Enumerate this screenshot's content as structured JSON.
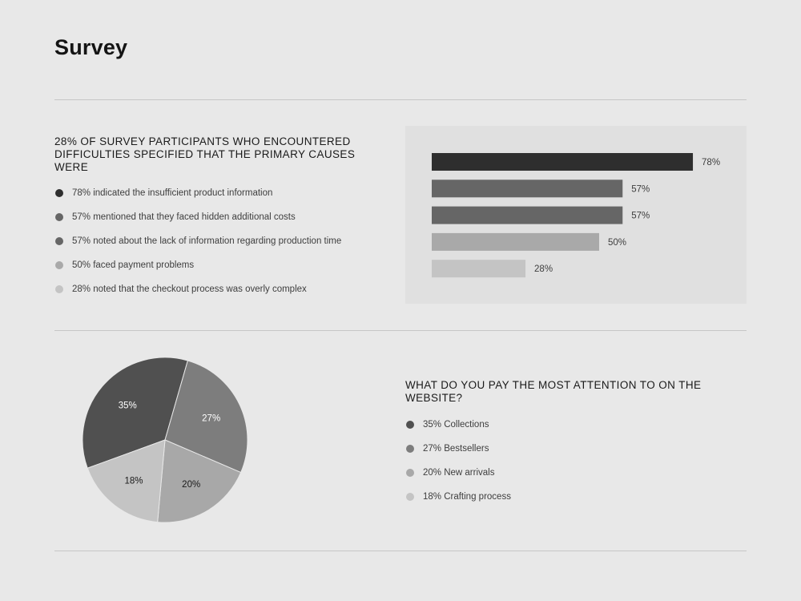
{
  "page": {
    "title": "Survey"
  },
  "section1": {
    "heading": "28% OF SURVEY PARTICIPANTS WHO ENCOUNTERED DIFFICULTIES SPECIFIED THAT THE PRIMARY CAUSES WERE",
    "items": [
      {
        "text": "78% indicated the insufficient product information",
        "color": "#2e2e2e"
      },
      {
        "text": "57% mentioned that they faced hidden additional costs",
        "color": "#666666"
      },
      {
        "text": "57% noted about the lack of information regarding production time",
        "color": "#666666"
      },
      {
        "text": "50% faced payment problems",
        "color": "#a9a9a9"
      },
      {
        "text": "28%  noted that the checkout process was overly complex",
        "color": "#c4c4c4"
      }
    ]
  },
  "section2": {
    "heading": "WHAT DO YOU PAY THE MOST ATTENTION TO ON THE WEBSITE?",
    "items": [
      {
        "text": "35% Collections",
        "color": "#505050"
      },
      {
        "text": "27% Bestsellers",
        "color": "#7d7d7d"
      },
      {
        "text": "20% New arrivals",
        "color": "#a8a8a8"
      },
      {
        "text": "18% Crafting process",
        "color": "#c4c4c4"
      }
    ]
  },
  "chart_data": [
    {
      "type": "bar",
      "orientation": "horizontal",
      "values": [
        78,
        57,
        57,
        50,
        28
      ],
      "data_labels": [
        "78%",
        "57%",
        "57%",
        "50%",
        "28%"
      ],
      "colors": [
        "#2e2e2e",
        "#666666",
        "#666666",
        "#a9a9a9",
        "#c4c4c4"
      ],
      "xlim": [
        0,
        100
      ],
      "grid": false
    },
    {
      "type": "pie",
      "values": [
        35,
        27,
        20,
        18
      ],
      "data_labels": [
        "35%",
        "27%",
        "20%",
        "18%"
      ],
      "colors": [
        "#505050",
        "#7d7d7d",
        "#a8a8a8",
        "#c4c4c4"
      ],
      "label_colors": [
        "#ffffff",
        "#ffffff",
        "#1a1a1a",
        "#1a1a1a"
      ],
      "start_angle_deg": 200,
      "direction": "counterclockwise"
    }
  ]
}
